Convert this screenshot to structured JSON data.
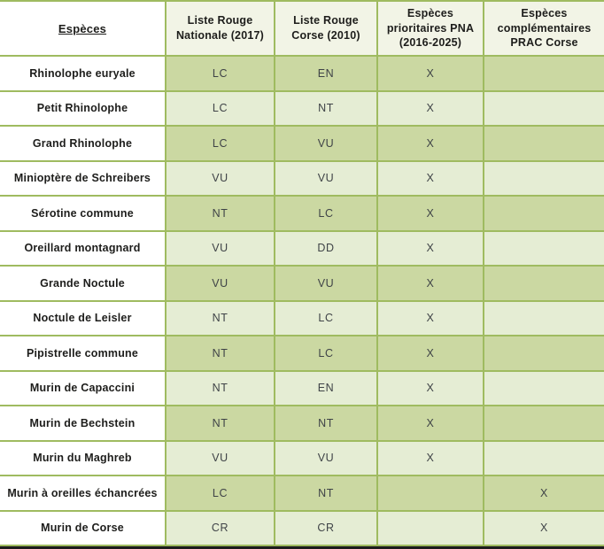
{
  "colors": {
    "grid_line_green": "#9fbb60",
    "row_dark_green": "#cbd8a2",
    "row_light_green": "#e5edd4",
    "header_cream": "#f2f4e6",
    "species_column_white": "#ffffff",
    "text_black": "#1d1d1b",
    "status_text_gray": "#3f4347",
    "bottom_edge_black": "#1c1c1c"
  },
  "table": {
    "headers": [
      "Espèces",
      "Liste Rouge Nationale (2017)",
      "Liste Rouge Corse (2010)",
      "Espèces prioritaires PNA (2016-2025)",
      "Espèces complémentaires PRAC Corse"
    ],
    "rows": [
      {
        "species": "Rhinolophe euryale",
        "nationale": "LC",
        "corse": "EN",
        "pna": "X",
        "prac": ""
      },
      {
        "species": "Petit Rhinolophe",
        "nationale": "LC",
        "corse": "NT",
        "pna": "X",
        "prac": ""
      },
      {
        "species": "Grand Rhinolophe",
        "nationale": "LC",
        "corse": "VU",
        "pna": "X",
        "prac": ""
      },
      {
        "species": "Minioptère de Schreibers",
        "nationale": "VU",
        "corse": "VU",
        "pna": "X",
        "prac": ""
      },
      {
        "species": "Sérotine commune",
        "nationale": "NT",
        "corse": "LC",
        "pna": "X",
        "prac": ""
      },
      {
        "species": "Oreillard montagnard",
        "nationale": "VU",
        "corse": "DD",
        "pna": "X",
        "prac": ""
      },
      {
        "species": "Grande Noctule",
        "nationale": "VU",
        "corse": "VU",
        "pna": "X",
        "prac": ""
      },
      {
        "species": "Noctule de Leisler",
        "nationale": "NT",
        "corse": "LC",
        "pna": "X",
        "prac": ""
      },
      {
        "species": "Pipistrelle commune",
        "nationale": "NT",
        "corse": "LC",
        "pna": "X",
        "prac": ""
      },
      {
        "species": "Murin de Capaccini",
        "nationale": "NT",
        "corse": "EN",
        "pna": "X",
        "prac": ""
      },
      {
        "species": "Murin de Bechstein",
        "nationale": "NT",
        "corse": "NT",
        "pna": "X",
        "prac": ""
      },
      {
        "species": "Murin du Maghreb",
        "nationale": "VU",
        "corse": "VU",
        "pna": "X",
        "prac": ""
      },
      {
        "species": "Murin à oreilles échancrées",
        "nationale": "LC",
        "corse": "NT",
        "pna": "",
        "prac": "X"
      },
      {
        "species": "Murin de Corse",
        "nationale": "CR",
        "corse": "CR",
        "pna": "",
        "prac": "X"
      }
    ]
  }
}
